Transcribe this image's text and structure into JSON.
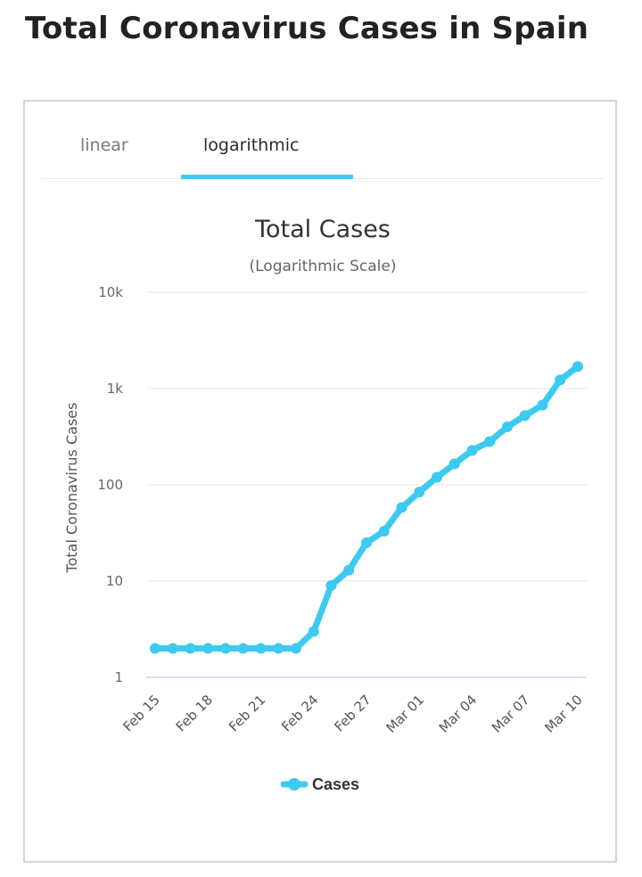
{
  "page": {
    "title": "Total Coronavirus Cases in Spain"
  },
  "tabs": {
    "linear": "linear",
    "logarithmic": "logarithmic",
    "active": "logarithmic"
  },
  "colors": {
    "series": "#3ccaf1",
    "grid": "#e6ecf2",
    "baseline": "#c6d7f5"
  },
  "chart_data": {
    "type": "line",
    "title": "Total Cases",
    "subtitle": "(Logarithmic Scale)",
    "ylabel": "Total Coronavirus Cases",
    "xlabel": "",
    "y_scale": "log",
    "ylim": [
      1,
      10000
    ],
    "y_ticks": [
      {
        "value": 1,
        "label": "1"
      },
      {
        "value": 10,
        "label": "10"
      },
      {
        "value": 100,
        "label": "100"
      },
      {
        "value": 1000,
        "label": "1k"
      },
      {
        "value": 10000,
        "label": "10k"
      }
    ],
    "categories": [
      "Feb 15",
      "Feb 16",
      "Feb 17",
      "Feb 18",
      "Feb 19",
      "Feb 20",
      "Feb 21",
      "Feb 22",
      "Feb 23",
      "Feb 24",
      "Feb 25",
      "Feb 26",
      "Feb 27",
      "Feb 28",
      "Feb 29",
      "Mar 01",
      "Mar 02",
      "Mar 03",
      "Mar 04",
      "Mar 05",
      "Mar 06",
      "Mar 07",
      "Mar 08",
      "Mar 09",
      "Mar 10"
    ],
    "x_tick_labels": [
      "Feb 15",
      "Feb 18",
      "Feb 21",
      "Feb 24",
      "Feb 27",
      "Mar 01",
      "Mar 04",
      "Mar 07",
      "Mar 10"
    ],
    "series": [
      {
        "name": "Cases",
        "values": [
          2,
          2,
          2,
          2,
          2,
          2,
          2,
          2,
          2,
          3,
          9,
          13,
          25,
          33,
          58,
          84,
          120,
          165,
          228,
          282,
          401,
          525,
          674,
          1231,
          1695
        ]
      }
    ],
    "legend": {
      "position": "bottom-center"
    },
    "grid": true
  }
}
